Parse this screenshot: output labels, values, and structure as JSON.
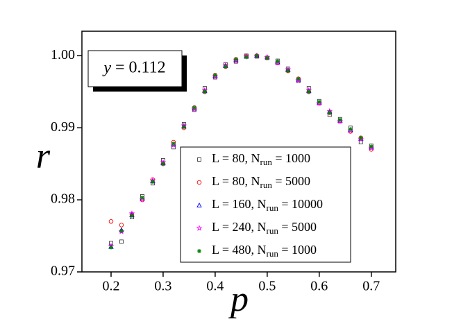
{
  "chart_data": {
    "type": "scatter",
    "x_label": "p",
    "y_label": "r",
    "annotation": "y = 0.112",
    "xlim": [
      0.144,
      0.747
    ],
    "ylim": [
      0.97,
      1.0034
    ],
    "xticks": [
      0.2,
      0.3,
      0.4,
      0.5,
      0.6,
      0.7
    ],
    "yticks": [
      {
        "value": 1,
        "label": "1.00"
      },
      0.99,
      0.98,
      0.97
    ],
    "x": [
      0.2,
      0.22,
      0.24,
      0.26,
      0.28,
      0.3,
      0.32,
      0.34,
      0.36,
      0.38,
      0.4,
      0.42,
      0.44,
      0.46,
      0.48,
      0.5,
      0.52,
      0.54,
      0.56,
      0.58,
      0.6,
      0.62,
      0.64,
      0.66,
      0.68,
      0.7
    ],
    "series": [
      {
        "name": "L = 80, Nrun = 1000",
        "color": "#404040",
        "marker": "square",
        "values": [
          0.974,
          0.9742,
          0.9776,
          0.9805,
          0.9823,
          0.9855,
          0.9873,
          0.9905,
          0.9925,
          0.9955,
          0.997,
          0.9988,
          0.9992,
          1.0,
          0.9999,
          0.9997,
          0.9993,
          0.9982,
          0.9965,
          0.9955,
          0.9937,
          0.9918,
          0.9912,
          0.99,
          0.988,
          0.9875
        ]
      },
      {
        "name": "L = 80, Nrun = 5000",
        "color": "#ff0000",
        "marker": "circle",
        "values": [
          0.977,
          0.9765,
          0.978,
          0.98,
          0.9828,
          0.985,
          0.988,
          0.99,
          0.9928,
          0.995,
          0.9973,
          0.9985,
          0.9995,
          0.9999,
          1.0,
          0.9997,
          0.999,
          0.9979,
          0.9968,
          0.995,
          0.9934,
          0.9921,
          0.9909,
          0.9895,
          0.9886,
          0.987
        ]
      },
      {
        "name": "L = 160, Nrun = 10000",
        "color": "#0000ff",
        "marker": "triangle",
        "values": [
          0.9735,
          0.9758,
          0.9779,
          0.9802,
          0.9826,
          0.9851,
          0.9877,
          0.9902,
          0.9927,
          0.9951,
          0.9972,
          0.9986,
          0.9994,
          0.9999,
          1.0,
          0.9998,
          0.9991,
          0.998,
          0.9967,
          0.9951,
          0.9935,
          0.9922,
          0.991,
          0.9897,
          0.9885,
          0.9873
        ]
      },
      {
        "name": "L = 240, Nrun = 5000",
        "color": "#ff00ff",
        "marker": "star",
        "values": [
          0.9736,
          0.9756,
          0.9781,
          0.9801,
          0.9827,
          0.9852,
          0.9876,
          0.9903,
          0.9926,
          0.9952,
          0.9971,
          0.9987,
          0.9993,
          0.9999,
          1.0,
          0.9998,
          0.999,
          0.9981,
          0.9966,
          0.9952,
          0.9934,
          0.9923,
          0.9909,
          0.9896,
          0.9884,
          0.9872
        ]
      },
      {
        "name": "L = 480, Nrun = 1000",
        "color": "#008000",
        "marker": "asterisk",
        "values": [
          0.9734,
          0.9757,
          0.9778,
          0.9803,
          0.9825,
          0.985,
          0.9878,
          0.9901,
          0.9928,
          0.995,
          0.9973,
          0.9985,
          0.9995,
          0.9998,
          1.0,
          0.9997,
          0.9992,
          0.9979,
          0.9968,
          0.995,
          0.9936,
          0.9921,
          0.9911,
          0.9898,
          0.9886,
          0.9874
        ]
      }
    ]
  }
}
